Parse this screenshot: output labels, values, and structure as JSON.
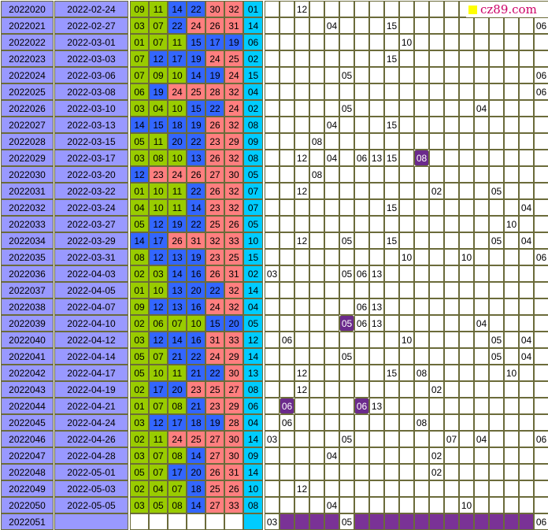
{
  "chart_data": {
    "type": "table",
    "columns": [
      "issue",
      "date",
      "numbers",
      "bonus",
      "marks"
    ],
    "colors": {
      "issue_bg": "#9999ff",
      "green": "#99cc00",
      "blue": "#3366ff",
      "red": "#ff7f7f",
      "cyan": "#00ccff",
      "purple": "#6b2a8c",
      "grid_line": "#6b6b3a"
    },
    "rows": [
      {
        "issue": "2022020",
        "date": "2022-02-24",
        "nums": [
          "09",
          "11",
          "14",
          "22",
          "30",
          "32"
        ],
        "bonus": "01",
        "marks": [
          [
            2,
            "12"
          ]
        ],
        "hl": []
      },
      {
        "issue": "2022021",
        "date": "2022-02-27",
        "nums": [
          "03",
          "07",
          "22",
          "24",
          "26",
          "31"
        ],
        "bonus": "14",
        "marks": [
          [
            4,
            "04"
          ],
          [
            8,
            "15"
          ],
          [
            18,
            "06"
          ]
        ],
        "hl": []
      },
      {
        "issue": "2022022",
        "date": "2022-03-01",
        "nums": [
          "01",
          "07",
          "11",
          "15",
          "17",
          "19"
        ],
        "bonus": "06",
        "marks": [
          [
            9,
            "10"
          ]
        ],
        "hl": []
      },
      {
        "issue": "2022023",
        "date": "2022-03-03",
        "nums": [
          "07",
          "12",
          "17",
          "19",
          "24",
          "25"
        ],
        "bonus": "02",
        "marks": [
          [
            8,
            "15"
          ]
        ],
        "hl": []
      },
      {
        "issue": "2022024",
        "date": "2022-03-06",
        "nums": [
          "07",
          "09",
          "10",
          "14",
          "19",
          "24"
        ],
        "bonus": "15",
        "marks": [
          [
            5,
            "05"
          ],
          [
            18,
            "06"
          ]
        ],
        "hl": []
      },
      {
        "issue": "2022025",
        "date": "2022-03-08",
        "nums": [
          "06",
          "19",
          "24",
          "25",
          "28",
          "32"
        ],
        "bonus": "04",
        "marks": [
          [
            18,
            "06"
          ]
        ],
        "hl": []
      },
      {
        "issue": "2022026",
        "date": "2022-03-10",
        "nums": [
          "03",
          "04",
          "10",
          "15",
          "22",
          "24"
        ],
        "bonus": "02",
        "marks": [
          [
            5,
            "05"
          ],
          [
            14,
            "04"
          ]
        ],
        "hl": []
      },
      {
        "issue": "2022027",
        "date": "2022-03-13",
        "nums": [
          "14",
          "15",
          "18",
          "19",
          "26",
          "32"
        ],
        "bonus": "08",
        "marks": [
          [
            4,
            "04"
          ],
          [
            8,
            "15"
          ]
        ],
        "hl": []
      },
      {
        "issue": "2022028",
        "date": "2022-03-15",
        "nums": [
          "05",
          "11",
          "20",
          "22",
          "23",
          "29"
        ],
        "bonus": "09",
        "marks": [
          [
            3,
            "08"
          ]
        ],
        "hl": []
      },
      {
        "issue": "2022029",
        "date": "2022-03-17",
        "nums": [
          "03",
          "08",
          "10",
          "13",
          "26",
          "32"
        ],
        "bonus": "08",
        "marks": [
          [
            2,
            "12"
          ],
          [
            4,
            "04"
          ],
          [
            6,
            "06"
          ],
          [
            7,
            "13"
          ],
          [
            8,
            "15"
          ],
          [
            10,
            "08"
          ]
        ],
        "hl": [
          10
        ]
      },
      {
        "issue": "2022030",
        "date": "2022-03-20",
        "nums": [
          "12",
          "23",
          "24",
          "26",
          "27",
          "30"
        ],
        "bonus": "05",
        "marks": [
          [
            3,
            "08"
          ]
        ],
        "hl": []
      },
      {
        "issue": "2022031",
        "date": "2022-03-22",
        "nums": [
          "01",
          "10",
          "11",
          "22",
          "26",
          "32"
        ],
        "bonus": "07",
        "marks": [
          [
            2,
            "12"
          ],
          [
            11,
            "02"
          ],
          [
            15,
            "05"
          ]
        ],
        "hl": []
      },
      {
        "issue": "2022032",
        "date": "2022-03-24",
        "nums": [
          "04",
          "10",
          "11",
          "14",
          "23",
          "32"
        ],
        "bonus": "07",
        "marks": [
          [
            8,
            "15"
          ],
          [
            17,
            "04"
          ]
        ],
        "hl": []
      },
      {
        "issue": "2022033",
        "date": "2022-03-27",
        "nums": [
          "05",
          "12",
          "19",
          "22",
          "25",
          "26"
        ],
        "bonus": "05",
        "marks": [
          [
            16,
            "10"
          ]
        ],
        "hl": []
      },
      {
        "issue": "2022034",
        "date": "2022-03-29",
        "nums": [
          "14",
          "17",
          "26",
          "31",
          "32",
          "33"
        ],
        "bonus": "10",
        "marks": [
          [
            2,
            "12"
          ],
          [
            5,
            "05"
          ],
          [
            8,
            "15"
          ],
          [
            15,
            "05"
          ],
          [
            17,
            "04"
          ]
        ],
        "hl": []
      },
      {
        "issue": "2022035",
        "date": "2022-03-31",
        "nums": [
          "08",
          "12",
          "13",
          "19",
          "23",
          "25"
        ],
        "bonus": "15",
        "marks": [
          [
            9,
            "10"
          ],
          [
            13,
            "10"
          ],
          [
            18,
            "06"
          ]
        ],
        "hl": []
      },
      {
        "issue": "2022036",
        "date": "2022-04-03",
        "nums": [
          "02",
          "03",
          "14",
          "16",
          "26",
          "31"
        ],
        "bonus": "02",
        "marks": [
          [
            0,
            "03"
          ],
          [
            5,
            "05"
          ],
          [
            6,
            "06"
          ],
          [
            7,
            "13"
          ]
        ],
        "hl": []
      },
      {
        "issue": "2022037",
        "date": "2022-04-05",
        "nums": [
          "01",
          "10",
          "13",
          "20",
          "22",
          "32"
        ],
        "bonus": "14",
        "marks": [],
        "hl": []
      },
      {
        "issue": "2022038",
        "date": "2022-04-07",
        "nums": [
          "09",
          "12",
          "13",
          "16",
          "24",
          "32"
        ],
        "bonus": "04",
        "marks": [
          [
            6,
            "06"
          ],
          [
            7,
            "13"
          ]
        ],
        "hl": []
      },
      {
        "issue": "2022039",
        "date": "2022-04-10",
        "nums": [
          "02",
          "06",
          "07",
          "10",
          "15",
          "20"
        ],
        "bonus": "05",
        "marks": [
          [
            5,
            "05"
          ],
          [
            6,
            "06"
          ],
          [
            7,
            "13"
          ],
          [
            14,
            "04"
          ]
        ],
        "hl": [
          5
        ]
      },
      {
        "issue": "2022040",
        "date": "2022-04-12",
        "nums": [
          "03",
          "12",
          "14",
          "16",
          "31",
          "33"
        ],
        "bonus": "12",
        "marks": [
          [
            1,
            "06"
          ],
          [
            9,
            "10"
          ],
          [
            15,
            "05"
          ],
          [
            17,
            "04"
          ]
        ],
        "hl": []
      },
      {
        "issue": "2022041",
        "date": "2022-04-14",
        "nums": [
          "05",
          "07",
          "21",
          "22",
          "24",
          "29"
        ],
        "bonus": "14",
        "marks": [
          [
            5,
            "05"
          ],
          [
            15,
            "05"
          ],
          [
            17,
            "04"
          ]
        ],
        "hl": []
      },
      {
        "issue": "2022042",
        "date": "2022-04-17",
        "nums": [
          "05",
          "10",
          "11",
          "21",
          "22",
          "30"
        ],
        "bonus": "13",
        "marks": [
          [
            2,
            "12"
          ],
          [
            8,
            "15"
          ],
          [
            10,
            "08"
          ],
          [
            16,
            "10"
          ]
        ],
        "hl": []
      },
      {
        "issue": "2022043",
        "date": "2022-04-19",
        "nums": [
          "02",
          "17",
          "20",
          "23",
          "25",
          "27"
        ],
        "bonus": "08",
        "marks": [
          [
            2,
            "12"
          ],
          [
            11,
            "02"
          ]
        ],
        "hl": []
      },
      {
        "issue": "2022044",
        "date": "2022-04-21",
        "nums": [
          "01",
          "07",
          "08",
          "21",
          "23",
          "29"
        ],
        "bonus": "06",
        "marks": [
          [
            1,
            "06"
          ],
          [
            6,
            "06"
          ],
          [
            7,
            "13"
          ]
        ],
        "hl": [
          1,
          6
        ]
      },
      {
        "issue": "2022045",
        "date": "2022-04-24",
        "nums": [
          "03",
          "12",
          "17",
          "18",
          "19",
          "28"
        ],
        "bonus": "04",
        "marks": [
          [
            1,
            "06"
          ],
          [
            10,
            "08"
          ]
        ],
        "hl": []
      },
      {
        "issue": "2022046",
        "date": "2022-04-26",
        "nums": [
          "02",
          "11",
          "24",
          "25",
          "27",
          "30"
        ],
        "bonus": "14",
        "marks": [
          [
            0,
            "03"
          ],
          [
            5,
            "05"
          ],
          [
            12,
            "07"
          ],
          [
            14,
            "04"
          ],
          [
            18,
            "06"
          ]
        ],
        "hl": []
      },
      {
        "issue": "2022047",
        "date": "2022-04-28",
        "nums": [
          "03",
          "07",
          "08",
          "14",
          "27",
          "30"
        ],
        "bonus": "09",
        "marks": [
          [
            4,
            "04"
          ],
          [
            11,
            "02"
          ]
        ],
        "hl": []
      },
      {
        "issue": "2022048",
        "date": "2022-05-01",
        "nums": [
          "05",
          "07",
          "17",
          "20",
          "26",
          "31"
        ],
        "bonus": "14",
        "marks": [
          [
            11,
            "02"
          ]
        ],
        "hl": []
      },
      {
        "issue": "2022049",
        "date": "2022-05-03",
        "nums": [
          "02",
          "04",
          "07",
          "18",
          "25",
          "26"
        ],
        "bonus": "10",
        "marks": [
          [
            2,
            "12"
          ]
        ],
        "hl": []
      },
      {
        "issue": "2022050",
        "date": "2022-05-05",
        "nums": [
          "03",
          "05",
          "08",
          "14",
          "27",
          "33"
        ],
        "bonus": "08",
        "marks": [
          [
            4,
            "04"
          ],
          [
            13,
            "10"
          ]
        ],
        "hl": []
      }
    ],
    "last_row": {
      "issue": "2022051",
      "marks": [
        [
          0,
          "03"
        ],
        [
          5,
          "05"
        ],
        [
          18,
          "06"
        ]
      ]
    }
  },
  "logo": {
    "text": "cz89.com"
  }
}
